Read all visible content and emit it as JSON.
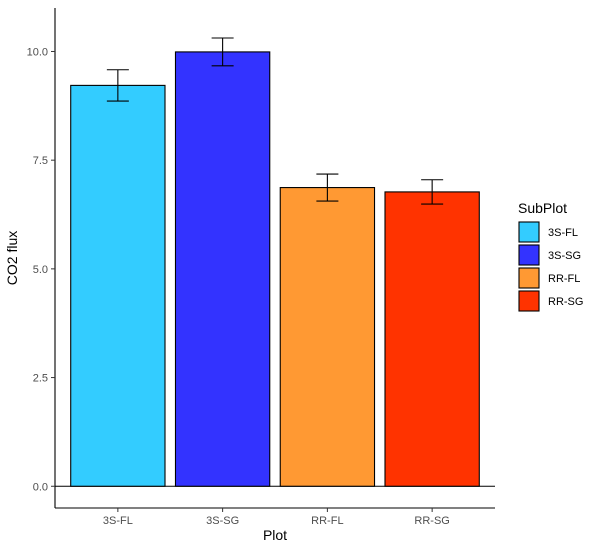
{
  "chart_data": {
    "type": "bar",
    "title": "",
    "xlabel": "Plot",
    "ylabel": "CO2 flux",
    "categories": [
      "3S-FL",
      "3S-SG",
      "RR-FL",
      "RR-SG"
    ],
    "values": [
      9.22,
      9.99,
      6.87,
      6.77
    ],
    "error_low": [
      8.86,
      9.67,
      6.56,
      6.49
    ],
    "error_high": [
      9.58,
      10.31,
      7.18,
      7.05
    ],
    "colors": [
      "#33CCFF",
      "#3333FF",
      "#FF9933",
      "#FF3300"
    ],
    "ylim": [
      -0.5,
      11.0
    ],
    "yticks": [
      0.0,
      2.5,
      5.0,
      7.5,
      10.0
    ],
    "ytick_labels": [
      "0.0",
      "2.5",
      "5.0",
      "7.5",
      "10.0"
    ],
    "hline": 0,
    "grid": false,
    "legend": {
      "title": "SubPlot",
      "position": "right",
      "entries": [
        "3S-FL",
        "3S-SG",
        "RR-FL",
        "RR-SG"
      ]
    }
  }
}
